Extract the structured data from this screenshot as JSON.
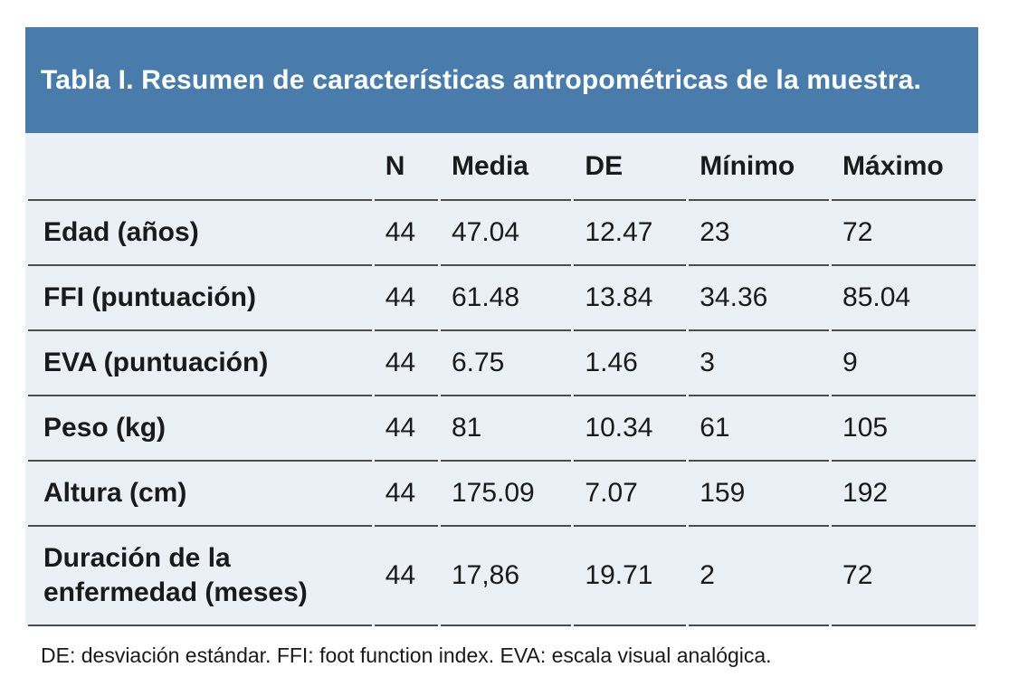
{
  "table": {
    "title": "Tabla I. Resumen de características antropométricas de la muestra.",
    "columns": [
      "",
      "N",
      "Media",
      "DE",
      "Mínimo",
      "Máximo"
    ],
    "rows": [
      {
        "label": "Edad (años)",
        "values": [
          "44",
          "47.04",
          "12.47",
          "23",
          "72"
        ]
      },
      {
        "label": "FFI (puntuación)",
        "values": [
          "44",
          "61.48",
          "13.84",
          "34.36",
          "85.04"
        ]
      },
      {
        "label": "EVA (puntuación)",
        "values": [
          "44",
          "6.75",
          "1.46",
          "3",
          "9"
        ]
      },
      {
        "label": "Peso (kg)",
        "values": [
          "44",
          "81",
          "10.34",
          "61",
          "105"
        ]
      },
      {
        "label": "Altura (cm)",
        "values": [
          "44",
          "175.09",
          "7.07",
          "159",
          "192"
        ]
      },
      {
        "label": "Duración de la enfermedad (meses)",
        "values": [
          "44",
          "17,86",
          "19.71",
          "2",
          "72"
        ]
      }
    ],
    "footnote": "DE: desviación estándar. FFI: foot function index. EVA: escala visual analógica.",
    "colors": {
      "banner_blue": "#4a7cab",
      "body_background": "#ebeff6",
      "divider_line": "#4c4c4c",
      "title_text": "#ffffff",
      "body_text": "#1a1a1a"
    }
  }
}
